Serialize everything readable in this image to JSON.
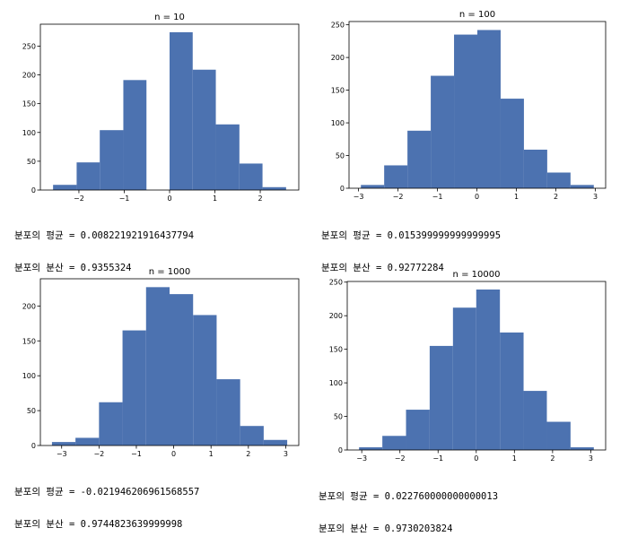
{
  "colors": {
    "bar": "#4c72b0",
    "frame": "#000000",
    "background": "#ffffff"
  },
  "panels": [
    {
      "mean_label": "분포의 평균 =",
      "mean_value": "0.008221921916437794",
      "var_label": "분포의 분산 =",
      "var_value": "0.9355324"
    },
    {
      "mean_label": "분포의 평균 =",
      "mean_value": "0.015399999999999995",
      "var_label": "분포의 분산 =",
      "var_value": "0.92772284"
    },
    {
      "mean_label": "분포의 평균 =",
      "mean_value": "-0.021946206961568557",
      "var_label": "분포의 분산 =",
      "var_value": "0.9744823639999998"
    },
    {
      "mean_label": "분포의 평균 =",
      "mean_value": "0.022760000000000013",
      "var_label": "분포의 분산 =",
      "var_value": "0.9730203824"
    }
  ],
  "chart_data": [
    {
      "type": "bar",
      "title": "n = 10",
      "bin_edges": [
        -2.57,
        -2.05,
        -1.54,
        -1.02,
        -0.51,
        0.0,
        0.51,
        1.02,
        1.54,
        2.05,
        2.57
      ],
      "values": [
        9,
        48,
        104,
        191,
        0,
        274,
        209,
        114,
        46,
        5
      ],
      "xlim": [
        -2.85,
        2.85
      ],
      "ylim": [
        0,
        288
      ],
      "xticks": [
        -2,
        -1,
        0,
        1,
        2
      ],
      "yticks": [
        0,
        50,
        100,
        150,
        200,
        250
      ],
      "grid": false
    },
    {
      "type": "bar",
      "title": "n = 100",
      "bin_edges": [
        -2.94,
        -2.35,
        -1.76,
        -1.17,
        -0.58,
        0.01,
        0.6,
        1.19,
        1.78,
        2.37,
        2.96
      ],
      "values": [
        5,
        35,
        88,
        172,
        235,
        242,
        137,
        59,
        24,
        5
      ],
      "xlim": [
        -3.24,
        3.26
      ],
      "ylim": [
        0,
        255
      ],
      "xticks": [
        -3,
        -2,
        -1,
        0,
        1,
        2,
        3
      ],
      "yticks": [
        0,
        50,
        100,
        150,
        200,
        250
      ],
      "grid": false
    },
    {
      "type": "bar",
      "title": "n = 1000",
      "bin_edges": [
        -3.26,
        -2.63,
        -2.0,
        -1.37,
        -0.74,
        -0.11,
        0.52,
        1.15,
        1.78,
        2.41,
        3.04
      ],
      "values": [
        5,
        11,
        62,
        165,
        227,
        217,
        187,
        95,
        28,
        8
      ],
      "xlim": [
        -3.57,
        3.35
      ],
      "ylim": [
        0,
        239
      ],
      "xticks": [
        -3,
        -2,
        -1,
        0,
        1,
        2,
        3
      ],
      "yticks": [
        0,
        50,
        100,
        150,
        200
      ],
      "grid": false
    },
    {
      "type": "bar",
      "title": "n = 10000",
      "bin_edges": [
        -3.07,
        -2.46,
        -1.84,
        -1.22,
        -0.61,
        0.0,
        0.62,
        1.24,
        1.85,
        2.47,
        3.08
      ],
      "values": [
        4,
        21,
        60,
        155,
        212,
        239,
        175,
        88,
        42,
        4
      ],
      "xlim": [
        -3.38,
        3.39
      ],
      "ylim": [
        0,
        251
      ],
      "xticks": [
        -3,
        -2,
        -1,
        0,
        1,
        2,
        3
      ],
      "yticks": [
        0,
        50,
        100,
        150,
        200,
        250
      ],
      "grid": false
    }
  ]
}
